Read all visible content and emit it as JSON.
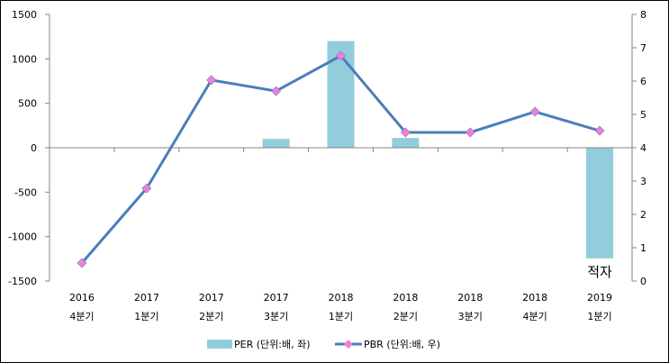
{
  "chart_data": {
    "type": "bar+line",
    "categories": [
      [
        "2016",
        "4분기"
      ],
      [
        "2017",
        "1분기"
      ],
      [
        "2017",
        "2분기"
      ],
      [
        "2017",
        "3분기"
      ],
      [
        "2018",
        "1분기"
      ],
      [
        "2018",
        "2분기"
      ],
      [
        "2018",
        "3분기"
      ],
      [
        "2018",
        "4분기"
      ],
      [
        "2019",
        "1분기"
      ]
    ],
    "series": [
      {
        "name": "PER (단위:배, 좌)",
        "type": "bar",
        "axis": "left",
        "color": "#92CDDC",
        "values": [
          null,
          null,
          null,
          100,
          1200,
          110,
          null,
          null,
          -1245
        ]
      },
      {
        "name": "PBR (단위:배, 우)",
        "type": "line",
        "axis": "right",
        "color": "#4A7EBB",
        "marker_color": "#F07FD8",
        "values": [
          0.54,
          2.78,
          6.03,
          5.7,
          6.76,
          4.46,
          4.46,
          5.08,
          4.51
        ]
      }
    ],
    "left_axis": {
      "min": -1500,
      "max": 1500,
      "step": 500,
      "ticks": [
        "-1500",
        "-1000",
        "-500",
        "0",
        "500",
        "1000",
        "1500"
      ]
    },
    "right_axis": {
      "min": 0,
      "max": 8,
      "step": 1,
      "ticks": [
        "0",
        "1",
        "2",
        "3",
        "4",
        "5",
        "6",
        "7",
        "8"
      ]
    },
    "annotations": [
      {
        "category_index": 8,
        "text": "적자"
      }
    ],
    "grid": false,
    "legend": "bottom"
  }
}
